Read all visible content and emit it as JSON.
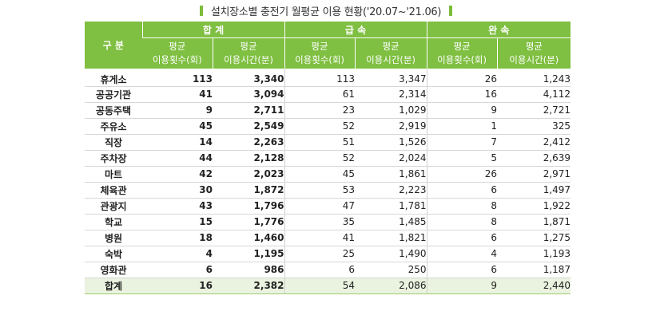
{
  "title": "설치장소별 충전기 월평균 이용 현황('20.07~'21.06)",
  "header": {
    "gubun": "구 분",
    "groups": [
      "합 계",
      "급 속",
      "완 속"
    ],
    "sub_line1": "평균",
    "sub_count": "이용횟수(회)",
    "sub_time": "이용시간(분)"
  },
  "rows": [
    {
      "name": "휴게소",
      "v": [
        "113",
        "3,340",
        "113",
        "3,347",
        "26",
        "1,243"
      ]
    },
    {
      "name": "공공기관",
      "v": [
        "41",
        "3,094",
        "61",
        "2,314",
        "16",
        "4,112"
      ]
    },
    {
      "name": "공동주택",
      "v": [
        "9",
        "2,711",
        "23",
        "1,029",
        "9",
        "2,721"
      ]
    },
    {
      "name": "주유소",
      "v": [
        "45",
        "2,549",
        "52",
        "2,919",
        "1",
        "325"
      ]
    },
    {
      "name": "직장",
      "v": [
        "14",
        "2,263",
        "51",
        "1,526",
        "7",
        "2,412"
      ]
    },
    {
      "name": "주차장",
      "v": [
        "44",
        "2,128",
        "52",
        "2,024",
        "5",
        "2,639"
      ]
    },
    {
      "name": "마트",
      "v": [
        "42",
        "2,023",
        "45",
        "1,861",
        "26",
        "2,971"
      ]
    },
    {
      "name": "체육관",
      "v": [
        "30",
        "1,872",
        "53",
        "2,223",
        "6",
        "1,497"
      ]
    },
    {
      "name": "관광지",
      "v": [
        "43",
        "1,796",
        "47",
        "1,781",
        "8",
        "1,922"
      ]
    },
    {
      "name": "학교",
      "v": [
        "15",
        "1,776",
        "35",
        "1,485",
        "8",
        "1,871"
      ]
    },
    {
      "name": "병원",
      "v": [
        "18",
        "1,460",
        "41",
        "1,821",
        "6",
        "1,275"
      ]
    },
    {
      "name": "숙박",
      "v": [
        "4",
        "1,195",
        "25",
        "1,490",
        "4",
        "1,193"
      ]
    },
    {
      "name": "영화관",
      "v": [
        "6",
        "986",
        "6",
        "250",
        "6",
        "1,187"
      ]
    }
  ],
  "total": {
    "name": "합계",
    "v": [
      "16",
      "2,382",
      "54",
      "2,086",
      "9",
      "2,440"
    ]
  },
  "colors": {
    "header_green": "#7fbf41",
    "total_bg": "#eaf3df",
    "title_mark": "#7dbd3a"
  }
}
